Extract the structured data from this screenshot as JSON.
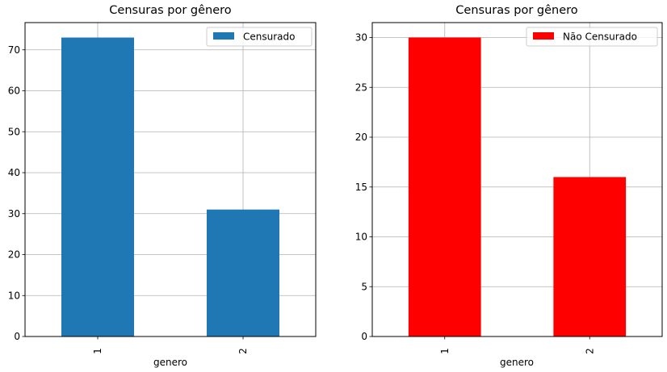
{
  "chart_data": [
    {
      "type": "bar",
      "title": "Censuras por gênero",
      "xlabel": "genero",
      "ylabel": "",
      "categories": [
        "1",
        "2"
      ],
      "series": [
        {
          "name": "Censurado",
          "values": [
            73,
            31
          ],
          "color": "#1f77b4"
        }
      ],
      "ylim": [
        0,
        76.65
      ],
      "yticks": [
        0,
        10,
        20,
        30,
        40,
        50,
        60,
        70
      ],
      "grid": true,
      "legend": "top-right"
    },
    {
      "type": "bar",
      "title": "Censuras por gênero",
      "xlabel": "genero",
      "ylabel": "",
      "categories": [
        "1",
        "2"
      ],
      "series": [
        {
          "name": "Não Censurado",
          "values": [
            30,
            16
          ],
          "color": "#ff0000"
        }
      ],
      "ylim": [
        0,
        31.5
      ],
      "yticks": [
        0,
        5,
        10,
        15,
        20,
        25,
        30
      ],
      "grid": true,
      "legend": "top-right"
    }
  ]
}
